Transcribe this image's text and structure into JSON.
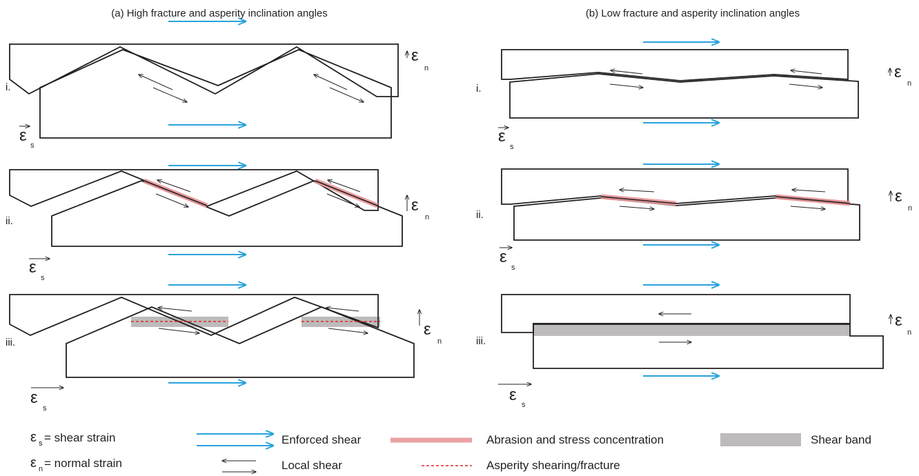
{
  "panels": {
    "a": {
      "title": "(a) High fracture and asperity inclination angles"
    },
    "b": {
      "title": "(b) Low fracture and asperity inclination angles"
    }
  },
  "rows": [
    "i.",
    "ii.",
    "iii."
  ],
  "symbols": {
    "eps": "ε",
    "s": "s",
    "n": "n"
  },
  "legend": {
    "shear_strain": "= shear strain",
    "normal_strain": "= normal strain",
    "enforced_shear": "Enforced shear",
    "local_shear": "Local shear",
    "abrasion": "Abrasion and stress concentration",
    "asperity_fracture": "Asperity shearing/fracture",
    "shear_band": "Shear band"
  },
  "colors": {
    "enforced_shear": "#29a3dc",
    "abrasion": "#e8979a",
    "asperity_fracture": "#e0242a",
    "shear_band": "#bdbbbb",
    "outline": "#231f20"
  }
}
